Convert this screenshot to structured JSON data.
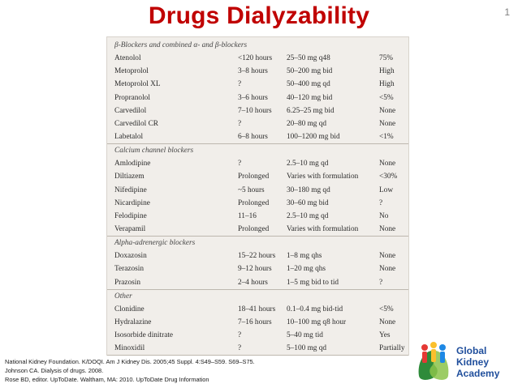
{
  "title": "Drugs Dialyzability",
  "slide_number": "1",
  "table": {
    "rows": [
      {
        "type": "cat",
        "c0": "β-Blockers and combined α- and β-blockers"
      },
      {
        "type": "drug",
        "c0": "Atenolol",
        "c1": "<120 hours",
        "c2": "25–50 mg q48",
        "c3": "75%"
      },
      {
        "type": "drug",
        "c0": "Metoprolol",
        "c1": "3–8 hours",
        "c2": "50–200 mg bid",
        "c3": "High"
      },
      {
        "type": "drug",
        "c0": "Metoprolol XL",
        "c1": "?",
        "c2": "50–400 mg qd",
        "c3": "High"
      },
      {
        "type": "drug",
        "c0": "Propranolol",
        "c1": "3–6 hours",
        "c2": "40–120 mg bid",
        "c3": "<5%"
      },
      {
        "type": "drug",
        "c0": "Carvedilol",
        "c1": "7–10 hours",
        "c2": "6.25–25 mg bid",
        "c3": "None"
      },
      {
        "type": "drug",
        "c0": "Carvedilol CR",
        "c1": "?",
        "c2": "20–80 mg qd",
        "c3": "None"
      },
      {
        "type": "drug",
        "c0": "Labetalol",
        "c1": "6–8 hours",
        "c2": "100–1200 mg bid",
        "c3": "<1%"
      },
      {
        "type": "cat",
        "c0": "Calcium channel blockers"
      },
      {
        "type": "drug",
        "c0": "Amlodipine",
        "c1": "?",
        "c2": "2.5–10 mg qd",
        "c3": "None"
      },
      {
        "type": "drug",
        "c0": "Diltiazem",
        "c1": "Prolonged",
        "c2": "Varies with formulation",
        "c3": "<30%"
      },
      {
        "type": "drug",
        "c0": "Nifedipine",
        "c1": "~5 hours",
        "c2": "30–180 mg qd",
        "c3": "Low"
      },
      {
        "type": "drug",
        "c0": "Nicardipine",
        "c1": "Prolonged",
        "c2": "30–60 mg bid",
        "c3": "?"
      },
      {
        "type": "drug",
        "c0": "Felodipine",
        "c1": "11–16",
        "c2": "2.5–10 mg qd",
        "c3": "No"
      },
      {
        "type": "drug",
        "c0": "Verapamil",
        "c1": "Prolonged",
        "c2": "Varies with formulation",
        "c3": "None"
      },
      {
        "type": "cat",
        "c0": "Alpha-adrenergic blockers"
      },
      {
        "type": "drug",
        "c0": "Doxazosin",
        "c1": "15–22 hours",
        "c2": "1–8 mg qhs",
        "c3": "None"
      },
      {
        "type": "drug",
        "c0": "Terazosin",
        "c1": "9–12 hours",
        "c2": "1–20 mg qhs",
        "c3": "None"
      },
      {
        "type": "drug",
        "c0": "Prazosin",
        "c1": "2–4 hours",
        "c2": "1–5 mg bid to tid",
        "c3": "?"
      },
      {
        "type": "cat",
        "c0": "Other"
      },
      {
        "type": "drug",
        "c0": "Clonidine",
        "c1": "18–41 hours",
        "c2": "0.1–0.4 mg bid-tid",
        "c3": "<5%"
      },
      {
        "type": "drug",
        "c0": "Hydralazine",
        "c1": "7–16 hours",
        "c2": "10–100 mg q8 hour",
        "c3": "None"
      },
      {
        "type": "drug",
        "c0": "Isosorbide dinitrate",
        "c1": "?",
        "c2": "5–40 mg tid",
        "c3": "Yes"
      },
      {
        "type": "drug",
        "c0": "Minoxidil",
        "c1": "?",
        "c2": "5–100 mg qd",
        "c3": "Partially"
      }
    ]
  },
  "references": [
    "National Kidney Foundation. K/DOQI. Am J Kidney Dis. 2005;45 Suppl. 4:S49–S59. S69–S75.",
    "Johnson CA. Dialysis of drugs. 2008.",
    "Rose BD, editor. UpToDate. Waltham, MA: 2010. UpToDate Drug Information"
  ],
  "logo": {
    "line1": "Global",
    "line2": "Kidney",
    "line3": "Academy"
  },
  "colors": {
    "title": "#c00000",
    "logo_text": "#1f4e9c",
    "table_bg": "#f1eeea"
  }
}
